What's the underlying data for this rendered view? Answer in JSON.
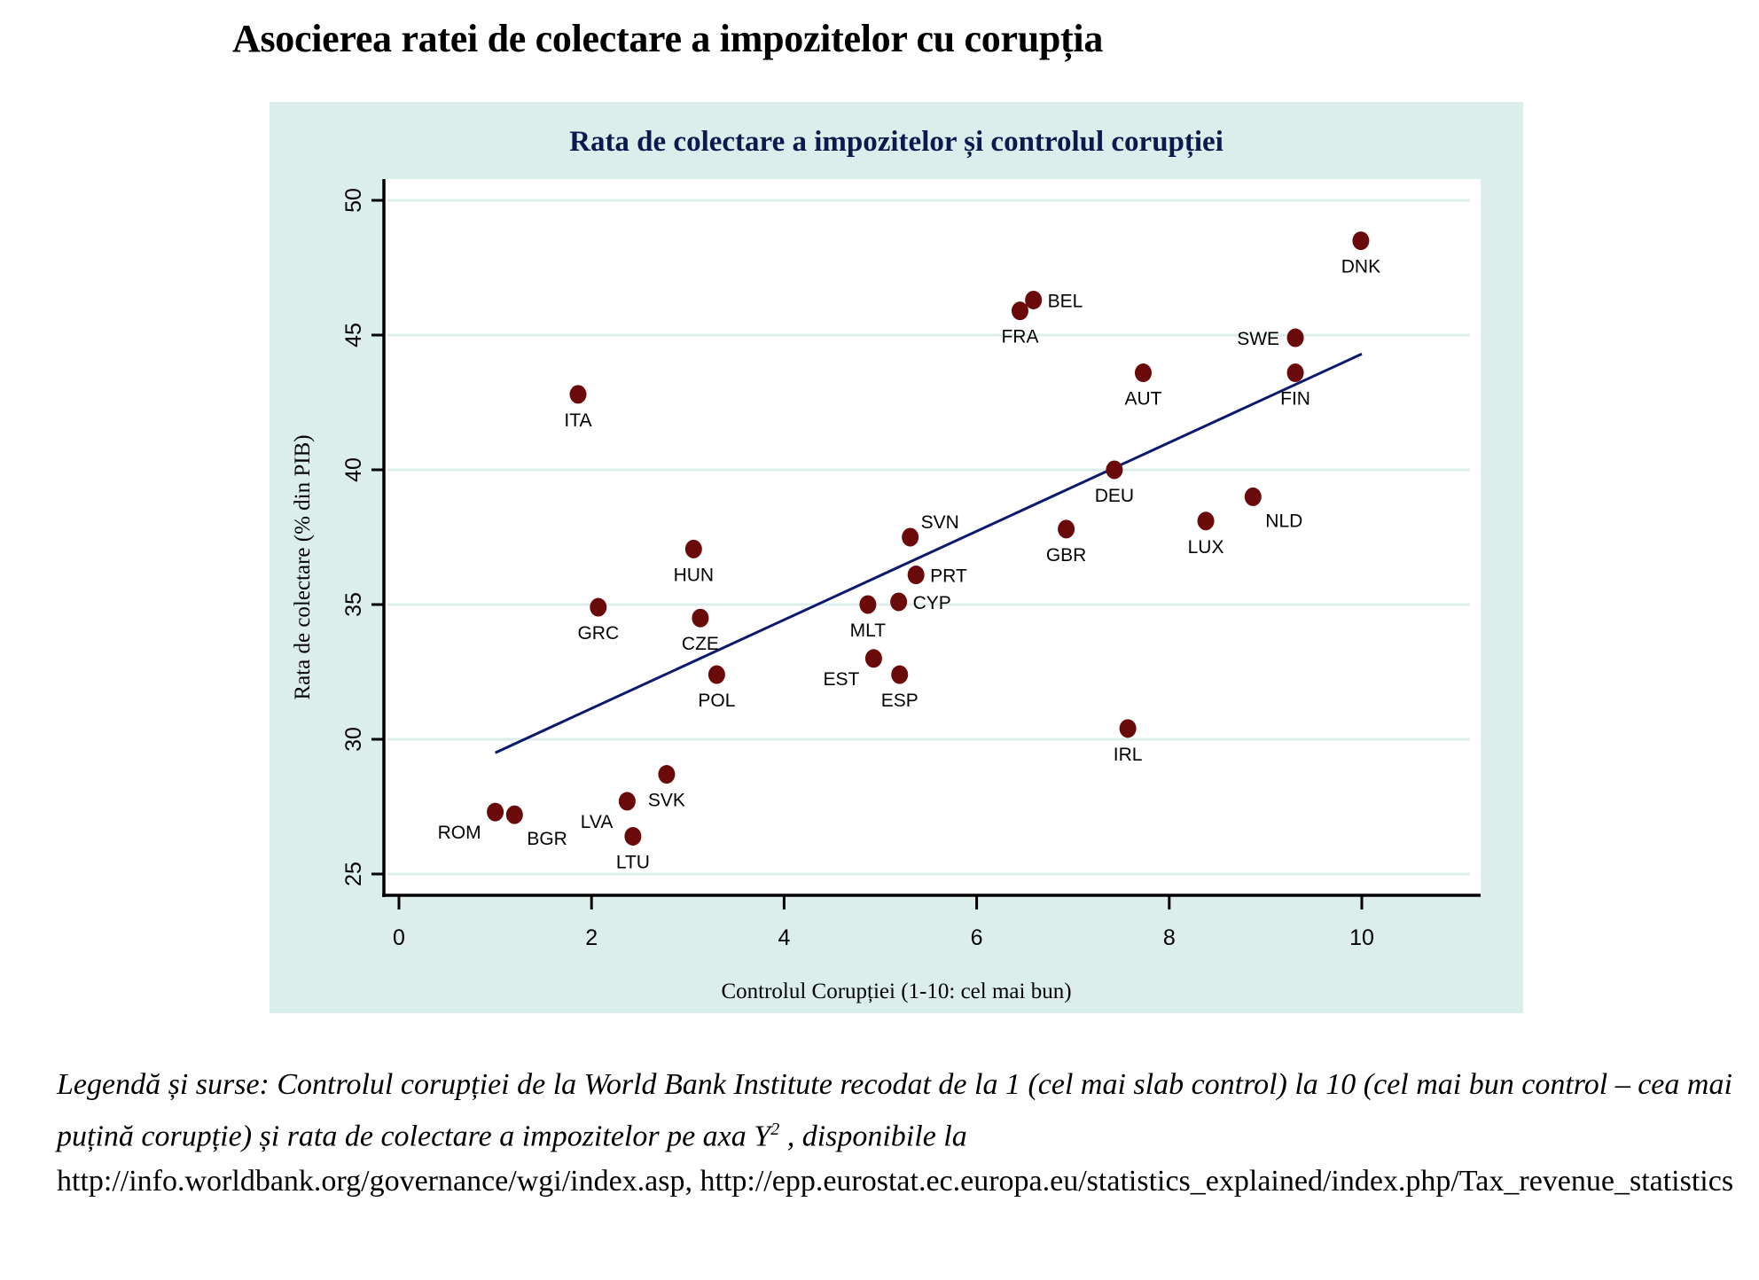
{
  "page": {
    "title": "Asocierea ratei de colectare a impozitelor cu corupția",
    "caption_italic_1": "Legendă și surse: Controlul corupției de la World Bank Institute recodat de la 1 (cel mai slab control) la 10 (cel mai bun control  – cea mai puțină corupție) și rata de colectare a impozitelor pe axa Y",
    "caption_sup": "2",
    "caption_italic_2": " , disponibile la",
    "caption_links": "http://info.worldbank.org/governance/wgi/index.asp, http://epp.eurostat.ec.europa.eu/statistics_explained/index.php/Tax_revenue_statistics"
  },
  "colors": {
    "panel_bg": "#dceeec",
    "plot_bg": "#ffffff",
    "grid": "#dceeec",
    "marker": "#6b0a0a",
    "fit_line": "#0b1a6e",
    "chart_title": "#0b1a4e"
  },
  "chart_data": {
    "type": "scatter",
    "title": "Rata de colectare a impozitelor și controlul corupției",
    "xlabel": "Controlul Corupției (1-10: cel mai bun)",
    "ylabel": "Rata de colectare  (% din PIB)",
    "xlim": [
      -0.2,
      11.2
    ],
    "ylim": [
      24.2,
      50.8
    ],
    "xticks": [
      0,
      2,
      4,
      6,
      8,
      10
    ],
    "yticks": [
      25,
      30,
      35,
      40,
      45,
      50
    ],
    "grid": "horizontal",
    "legend": "none",
    "points": [
      {
        "label": "ROM",
        "x": 1.0,
        "y": 27.3,
        "pos": "bl"
      },
      {
        "label": "BGR",
        "x": 1.2,
        "y": 27.2,
        "pos": "br"
      },
      {
        "label": "ITA",
        "x": 1.86,
        "y": 42.8,
        "pos": "b"
      },
      {
        "label": "GRC",
        "x": 2.07,
        "y": 34.9,
        "pos": "b"
      },
      {
        "label": "LVA",
        "x": 2.37,
        "y": 27.7,
        "pos": "bl"
      },
      {
        "label": "LTU",
        "x": 2.43,
        "y": 26.4,
        "pos": "b"
      },
      {
        "label": "SVK",
        "x": 2.78,
        "y": 28.7,
        "pos": "b"
      },
      {
        "label": "HUN",
        "x": 3.06,
        "y": 37.06,
        "pos": "b"
      },
      {
        "label": "CZE",
        "x": 3.13,
        "y": 34.5,
        "pos": "b"
      },
      {
        "label": "POL",
        "x": 3.3,
        "y": 32.4,
        "pos": "b"
      },
      {
        "label": "MLT",
        "x": 4.87,
        "y": 35.0,
        "pos": "b"
      },
      {
        "label": "EST",
        "x": 4.93,
        "y": 33.0,
        "pos": "bl"
      },
      {
        "label": "CYP",
        "x": 5.19,
        "y": 35.1,
        "pos": "r"
      },
      {
        "label": "ESP",
        "x": 5.2,
        "y": 32.4,
        "pos": "b"
      },
      {
        "label": "SVN",
        "x": 5.31,
        "y": 37.5,
        "pos": "tr"
      },
      {
        "label": "PRT",
        "x": 5.37,
        "y": 36.1,
        "pos": "r"
      },
      {
        "label": "FRA",
        "x": 6.45,
        "y": 45.9,
        "pos": "b"
      },
      {
        "label": "BEL",
        "x": 6.59,
        "y": 46.3,
        "pos": "r"
      },
      {
        "label": "GBR",
        "x": 6.93,
        "y": 37.8,
        "pos": "b"
      },
      {
        "label": "DEU",
        "x": 7.43,
        "y": 40.0,
        "pos": "b"
      },
      {
        "label": "IRL",
        "x": 7.57,
        "y": 30.4,
        "pos": "b"
      },
      {
        "label": "AUT",
        "x": 7.73,
        "y": 43.6,
        "pos": "b"
      },
      {
        "label": "LUX",
        "x": 8.38,
        "y": 38.1,
        "pos": "b"
      },
      {
        "label": "NLD",
        "x": 8.87,
        "y": 39.0,
        "pos": "br"
      },
      {
        "label": "SWE",
        "x": 9.31,
        "y": 44.9,
        "pos": "l"
      },
      {
        "label": "FIN",
        "x": 9.31,
        "y": 43.6,
        "pos": "b"
      },
      {
        "label": "DNK",
        "x": 9.99,
        "y": 48.5,
        "pos": "b"
      }
    ],
    "fit_line": {
      "x": [
        1.0,
        10.0
      ],
      "y": [
        29.5,
        44.3
      ]
    }
  }
}
